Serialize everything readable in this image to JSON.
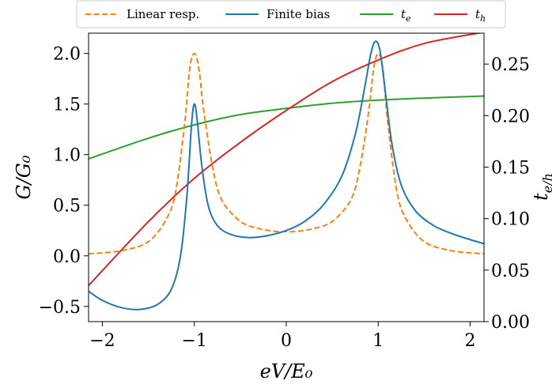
{
  "chart_data": {
    "type": "line",
    "x_axis": {
      "label": "eV/E₀",
      "range": [
        -2.15,
        2.15
      ],
      "ticks": [
        -2,
        -1,
        0,
        1,
        2
      ],
      "tick_labels": [
        "−2",
        "−1",
        "0",
        "1",
        "2"
      ]
    },
    "y_axis_left": {
      "label": "G/G₀",
      "range": [
        -0.65,
        2.2
      ],
      "ticks": [
        -0.5,
        0.0,
        0.5,
        1.0,
        1.5,
        2.0
      ],
      "tick_labels": [
        "−0.5",
        "0.0",
        "0.5",
        "1.0",
        "1.5",
        "2.0"
      ]
    },
    "y_axis_right": {
      "label": "t_{e/h}",
      "range": [
        0.0,
        0.28
      ],
      "ticks": [
        0.0,
        0.05,
        0.1,
        0.15,
        0.2,
        0.25
      ],
      "tick_labels": [
        "0.00",
        "0.05",
        "0.10",
        "0.15",
        "0.20",
        "0.25"
      ]
    },
    "legend": {
      "placement": "top, above plot",
      "entries": [
        {
          "label": "Linear resp.",
          "color": "#ff7f0e",
          "style": "dashed"
        },
        {
          "label": "Finite bias",
          "color": "#1f77b4",
          "style": "solid"
        },
        {
          "label": "t",
          "subscript": "e",
          "color": "#2ca02c",
          "style": "solid"
        },
        {
          "label": "t",
          "subscript": "h",
          "color": "#d62728",
          "style": "solid"
        }
      ]
    },
    "series": [
      {
        "name": "Linear resp.",
        "axis": "left",
        "color": "#ff7f0e",
        "style": "dashed",
        "points": [
          [
            -2.15,
            0.02
          ],
          [
            -1.8,
            0.05
          ],
          [
            -1.5,
            0.14
          ],
          [
            -1.3,
            0.37
          ],
          [
            -1.2,
            0.65
          ],
          [
            -1.1,
            1.35
          ],
          [
            -1.05,
            1.85
          ],
          [
            -1.0,
            2.0
          ],
          [
            -0.95,
            1.85
          ],
          [
            -0.9,
            1.45
          ],
          [
            -0.8,
            0.87
          ],
          [
            -0.7,
            0.55
          ],
          [
            -0.5,
            0.34
          ],
          [
            -0.3,
            0.27
          ],
          [
            -0.1,
            0.24
          ],
          [
            0.0,
            0.24
          ],
          [
            0.1,
            0.24
          ],
          [
            0.3,
            0.27
          ],
          [
            0.5,
            0.34
          ],
          [
            0.7,
            0.55
          ],
          [
            0.8,
            0.87
          ],
          [
            0.9,
            1.45
          ],
          [
            0.95,
            1.85
          ],
          [
            1.0,
            2.0
          ],
          [
            1.05,
            1.85
          ],
          [
            1.1,
            1.35
          ],
          [
            1.2,
            0.65
          ],
          [
            1.3,
            0.37
          ],
          [
            1.5,
            0.14
          ],
          [
            1.8,
            0.05
          ],
          [
            2.15,
            0.02
          ]
        ]
      },
      {
        "name": "Finite bias",
        "axis": "left",
        "color": "#1f77b4",
        "style": "solid",
        "points": [
          [
            -2.15,
            -0.35
          ],
          [
            -2.0,
            -0.44
          ],
          [
            -1.8,
            -0.51
          ],
          [
            -1.6,
            -0.53
          ],
          [
            -1.4,
            -0.48
          ],
          [
            -1.25,
            -0.33
          ],
          [
            -1.15,
            0.0
          ],
          [
            -1.08,
            0.6
          ],
          [
            -1.03,
            1.3
          ],
          [
            -1.0,
            1.5
          ],
          [
            -0.97,
            1.35
          ],
          [
            -0.92,
            0.9
          ],
          [
            -0.85,
            0.5
          ],
          [
            -0.75,
            0.3
          ],
          [
            -0.6,
            0.21
          ],
          [
            -0.4,
            0.18
          ],
          [
            -0.2,
            0.2
          ],
          [
            0.0,
            0.25
          ],
          [
            0.2,
            0.34
          ],
          [
            0.4,
            0.5
          ],
          [
            0.6,
            0.78
          ],
          [
            0.75,
            1.2
          ],
          [
            0.85,
            1.65
          ],
          [
            0.92,
            2.0
          ],
          [
            0.97,
            2.12
          ],
          [
            1.02,
            2.02
          ],
          [
            1.08,
            1.6
          ],
          [
            1.15,
            1.1
          ],
          [
            1.25,
            0.7
          ],
          [
            1.4,
            0.45
          ],
          [
            1.6,
            0.3
          ],
          [
            1.8,
            0.22
          ],
          [
            2.0,
            0.16
          ],
          [
            2.15,
            0.12
          ]
        ]
      },
      {
        "name": "t_e",
        "axis": "right",
        "color": "#2ca02c",
        "style": "solid",
        "points": [
          [
            -2.15,
            0.158
          ],
          [
            -1.5,
            0.178
          ],
          [
            -1.0,
            0.191
          ],
          [
            -0.5,
            0.201
          ],
          [
            0.0,
            0.207
          ],
          [
            0.5,
            0.212
          ],
          [
            1.0,
            0.215
          ],
          [
            1.5,
            0.217
          ],
          [
            2.15,
            0.219
          ]
        ]
      },
      {
        "name": "t_h",
        "axis": "right",
        "color": "#d62728",
        "style": "solid",
        "points": [
          [
            -2.15,
            0.035
          ],
          [
            -1.5,
            0.097
          ],
          [
            -1.0,
            0.139
          ],
          [
            -0.5,
            0.174
          ],
          [
            0.0,
            0.205
          ],
          [
            0.5,
            0.233
          ],
          [
            1.0,
            0.254
          ],
          [
            1.5,
            0.27
          ],
          [
            2.15,
            0.281
          ]
        ]
      }
    ]
  }
}
